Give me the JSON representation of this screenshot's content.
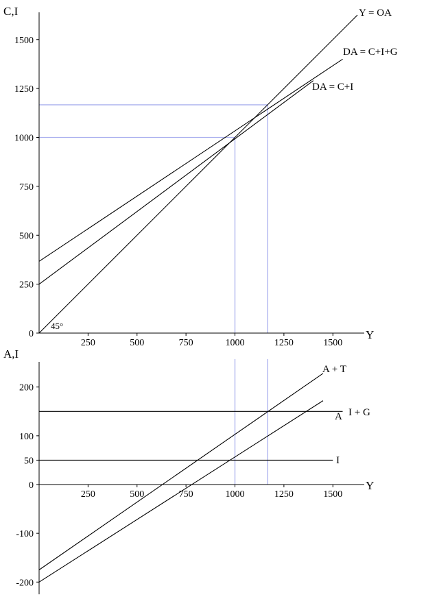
{
  "chart_data": [
    {
      "type": "line",
      "title": "",
      "xlabel": "Y",
      "ylabel": "C,I",
      "xlim": [
        0,
        1600
      ],
      "ylim": [
        0,
        1600
      ],
      "xticks": [
        250,
        500,
        750,
        1000,
        1250,
        1500
      ],
      "yticks": [
        0,
        250,
        500,
        750,
        1000,
        1250,
        1500
      ],
      "angle_label": "45°",
      "series": [
        {
          "name": "Y = OA",
          "x": [
            0,
            1625
          ],
          "y": [
            0,
            1625
          ]
        },
        {
          "name": "DA = C+I+G",
          "x": [
            0,
            1550
          ],
          "y": [
            366.67,
            1400
          ]
        },
        {
          "name": "DA = C+I",
          "x": [
            0,
            1400
          ],
          "y": [
            250,
            1290
          ]
        }
      ],
      "guides": {
        "vertical_x": [
          1000,
          1166.67
        ],
        "horizontal_y": [
          1000,
          1166.67
        ]
      }
    },
    {
      "type": "line",
      "title": "",
      "xlabel": "Y",
      "ylabel": "A,I",
      "xlim": [
        0,
        1600
      ],
      "ylim": [
        -225,
        250
      ],
      "xticks": [
        250,
        500,
        750,
        1000,
        1250,
        1500
      ],
      "yticks": [
        200,
        100,
        50,
        0,
        -100,
        -200
      ],
      "series": [
        {
          "name": "A + T",
          "x": [
            0,
            1450
          ],
          "y": [
            -175,
            228
          ]
        },
        {
          "name": "A",
          "x": [
            0,
            1450
          ],
          "y": [
            -200,
            172
          ]
        },
        {
          "name": "I + G",
          "x": [
            0,
            1550
          ],
          "y": [
            150,
            150
          ]
        },
        {
          "name": "I",
          "x": [
            0,
            1500
          ],
          "y": [
            50,
            50
          ]
        }
      ],
      "guides": {
        "vertical_x": [
          1000,
          1166.67
        ]
      }
    }
  ]
}
